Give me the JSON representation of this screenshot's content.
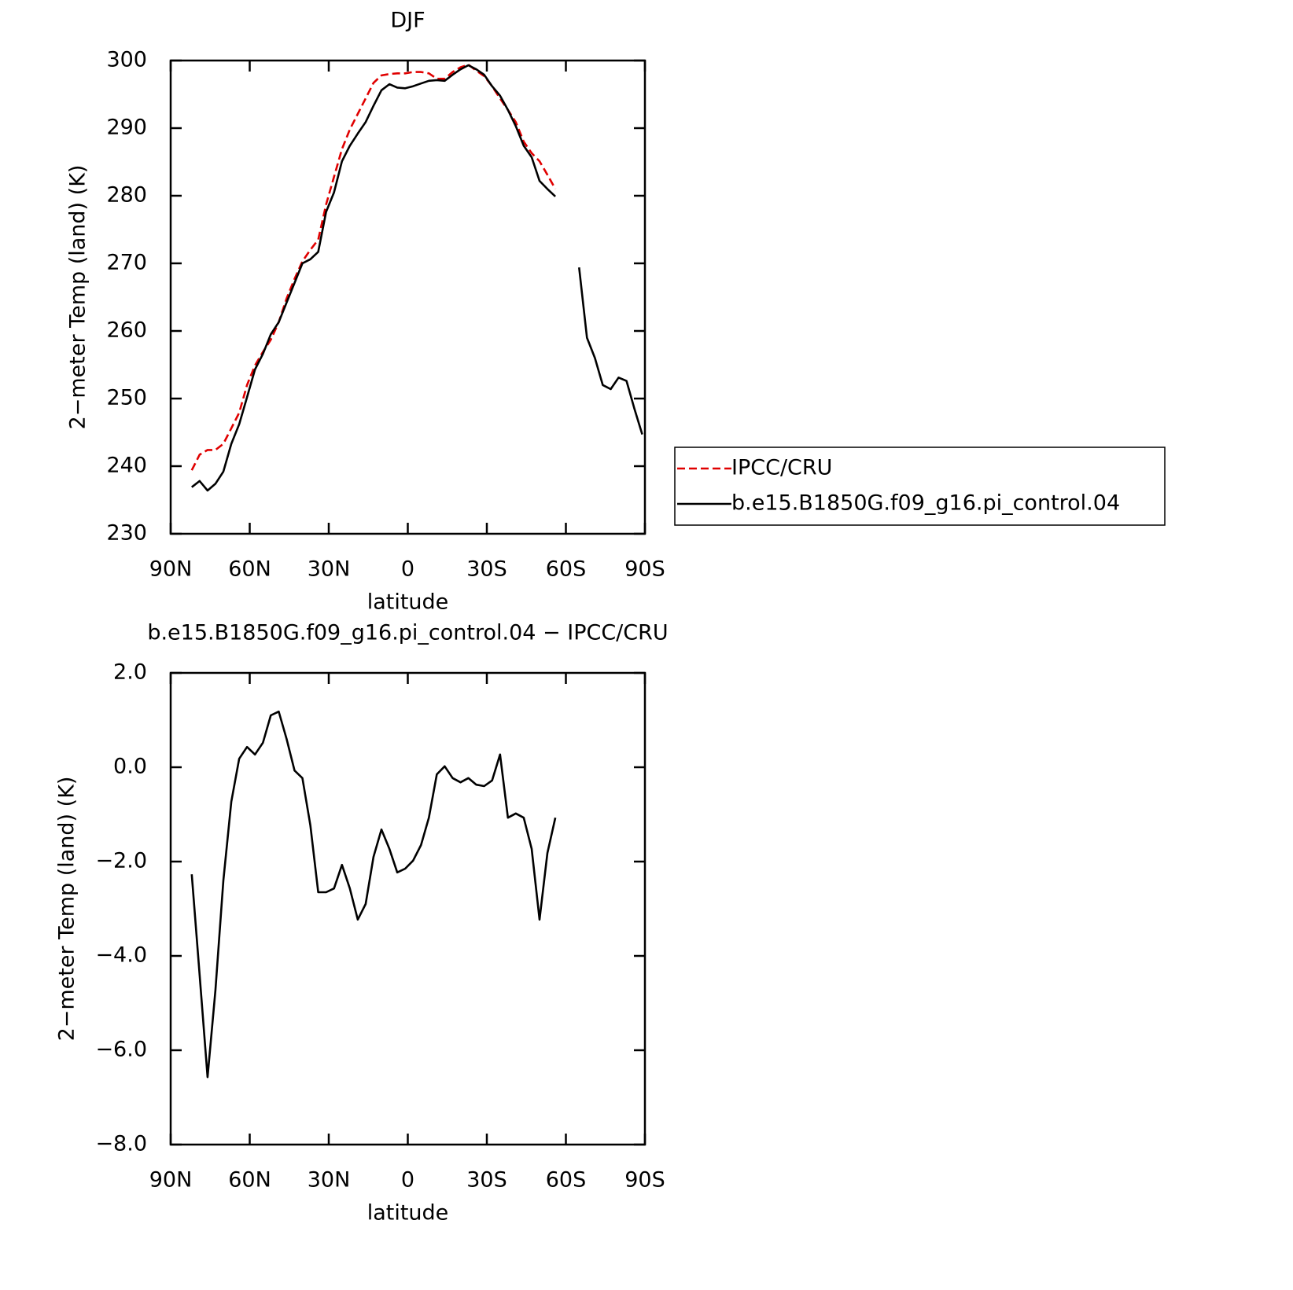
{
  "chart_data": [
    {
      "type": "line",
      "title": "DJF",
      "xlabel": "latitude",
      "ylabel": "2−meter Temp (land) (K)",
      "x": [
        82,
        79,
        76,
        73,
        70,
        67,
        64,
        61,
        58,
        55,
        52,
        49,
        46,
        43,
        40,
        37,
        34,
        31,
        28,
        25,
        22,
        19,
        16,
        13,
        10,
        7,
        4,
        1,
        -2,
        -5,
        -8,
        -11,
        -14,
        -17,
        -20,
        -23,
        -26,
        -29,
        -32,
        -35,
        -38,
        -41,
        -44,
        -47,
        -50,
        -53,
        -56,
        -59,
        -62,
        -65,
        -68,
        -71,
        -74,
        -77,
        -80,
        -83,
        -86,
        -89
      ],
      "series": [
        {
          "name": "IPCC/CRU",
          "color": "#e00000",
          "line_style": "dashed",
          "values": [
            239.4,
            241.7,
            242.4,
            242.4,
            243.3,
            245.6,
            247.9,
            252.0,
            254.9,
            256.9,
            258.7,
            261.3,
            264.8,
            267.7,
            270.3,
            272.0,
            273.5,
            278.7,
            282.8,
            286.9,
            289.8,
            292.1,
            294.4,
            296.7,
            297.8,
            298.0,
            298.1,
            298.1,
            298.3,
            298.3,
            298.1,
            297.3,
            297.3,
            298.3,
            299.0,
            299.4,
            298.5,
            297.7,
            296.2,
            294.4,
            292.7,
            290.9,
            288.0,
            286.3,
            285.1,
            283.1,
            281.0,
            null,
            null,
            null,
            null,
            null,
            null,
            null,
            null,
            null,
            null,
            null
          ]
        },
        {
          "name": "b.e15.B1850G.f09_g16.pi_control.04",
          "color": "#000000",
          "line_style": "solid",
          "values": [
            236.9,
            237.8,
            236.4,
            237.4,
            239.2,
            243.3,
            246.2,
            250.2,
            254.3,
            256.6,
            259.5,
            261.3,
            264.2,
            267.1,
            270.0,
            270.6,
            271.7,
            277.6,
            280.5,
            285.1,
            287.4,
            289.2,
            290.9,
            293.3,
            295.6,
            296.5,
            296.0,
            295.9,
            296.2,
            296.6,
            297.0,
            297.1,
            297.0,
            297.9,
            298.7,
            299.3,
            298.7,
            297.9,
            296.2,
            294.8,
            292.7,
            290.3,
            287.4,
            285.7,
            282.2,
            281.0,
            279.9,
            null,
            null,
            269.4,
            259.0,
            256.0,
            252.0,
            251.4,
            253.1,
            252.6,
            248.5,
            244.7
          ]
        }
      ],
      "xlim": [
        90,
        -90
      ],
      "xticks": [
        {
          "value": 90,
          "label": "90N"
        },
        {
          "value": 60,
          "label": "60N"
        },
        {
          "value": 30,
          "label": "30N"
        },
        0,
        {
          "value": -30,
          "label": "30S"
        },
        {
          "value": -60,
          "label": "60S"
        },
        {
          "value": -90,
          "label": "90S"
        }
      ],
      "ylim": [
        230,
        300
      ],
      "yticks": [
        230,
        240,
        250,
        260,
        270,
        280,
        290,
        300
      ],
      "legend": "right"
    },
    {
      "type": "line",
      "title": "b.e15.B1850G.f09_g16.pi_control.04 − IPCC/CRU",
      "xlabel": "latitude",
      "ylabel": "2−meter Temp (land) (K)",
      "x": [
        82,
        79,
        76,
        73,
        70,
        67,
        64,
        61,
        58,
        55,
        52,
        49,
        46,
        43,
        40,
        37,
        34,
        31,
        28,
        25,
        22,
        19,
        16,
        13,
        10,
        7,
        4,
        1,
        -2,
        -5,
        -8,
        -11,
        -14,
        -17,
        -20,
        -23,
        -26,
        -29,
        -32,
        -35,
        -38,
        -41,
        -44,
        -47,
        -50,
        -53,
        -56
      ],
      "color": "#000000",
      "values": [
        -2.27,
        -4.4,
        -6.57,
        -4.73,
        -2.4,
        -0.73,
        0.18,
        0.43,
        0.27,
        0.52,
        1.1,
        1.18,
        0.6,
        -0.07,
        -0.23,
        -1.23,
        -2.65,
        -2.65,
        -2.57,
        -2.07,
        -2.57,
        -3.23,
        -2.9,
        -1.9,
        -1.32,
        -1.73,
        -2.23,
        -2.15,
        -1.98,
        -1.65,
        -1.07,
        -0.15,
        0.02,
        -0.23,
        -0.32,
        -0.23,
        -0.37,
        -0.4,
        -0.28,
        0.27,
        -1.07,
        -0.98,
        -1.07,
        -1.73,
        -3.23,
        -1.82,
        -1.07
      ],
      "xlim": [
        90,
        -90
      ],
      "xticks": [
        {
          "value": 90,
          "label": "90N"
        },
        {
          "value": 60,
          "label": "60N"
        },
        {
          "value": 30,
          "label": "30N"
        },
        0,
        {
          "value": -30,
          "label": "30S"
        },
        {
          "value": -60,
          "label": "60S"
        },
        {
          "value": -90,
          "label": "90S"
        }
      ],
      "ylim": [
        -8,
        2
      ],
      "yticks": [
        {
          "value": -8,
          "label": "−8.0"
        },
        {
          "value": -6,
          "label": "−6.0"
        },
        {
          "value": -4,
          "label": "−4.0"
        },
        {
          "value": -2,
          "label": "−2.0"
        },
        {
          "value": 0,
          "label": "0.0"
        },
        {
          "value": 2,
          "label": "2.0"
        }
      ]
    }
  ]
}
